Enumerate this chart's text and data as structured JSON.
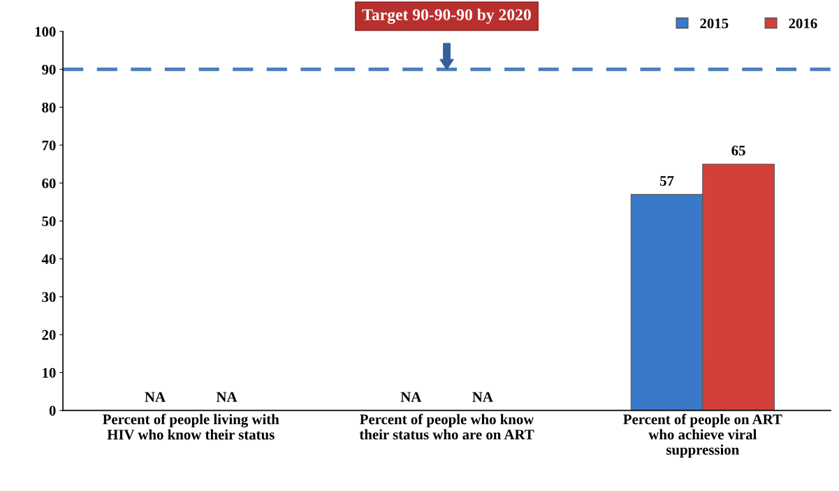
{
  "chart_data": {
    "type": "bar",
    "categories": [
      "Percent of people living with\nHIV who know their status",
      "Percent of people who know\ntheir status who are on ART",
      "Percent of people on ART\nwho achieve viral\nsuppression"
    ],
    "series": [
      {
        "name": "2015",
        "color": "#3a78c9",
        "values": [
          null,
          null,
          57
        ],
        "value_labels": [
          "NA",
          "NA",
          "57"
        ]
      },
      {
        "name": "2016",
        "color": "#d43f3a",
        "values": [
          null,
          null,
          65
        ],
        "value_labels": [
          "NA",
          "NA",
          "65"
        ]
      }
    ],
    "ylim": [
      0,
      100
    ],
    "yticks": [
      0,
      10,
      20,
      30,
      40,
      50,
      60,
      70,
      80,
      90,
      100
    ],
    "ref_lines": [
      {
        "axis": "y",
        "value": 90,
        "label": "Target 90-90-90 by 2020",
        "color": "#4a7ebb",
        "line_style": "dashed"
      }
    ],
    "grid": false,
    "legend": "top right"
  }
}
